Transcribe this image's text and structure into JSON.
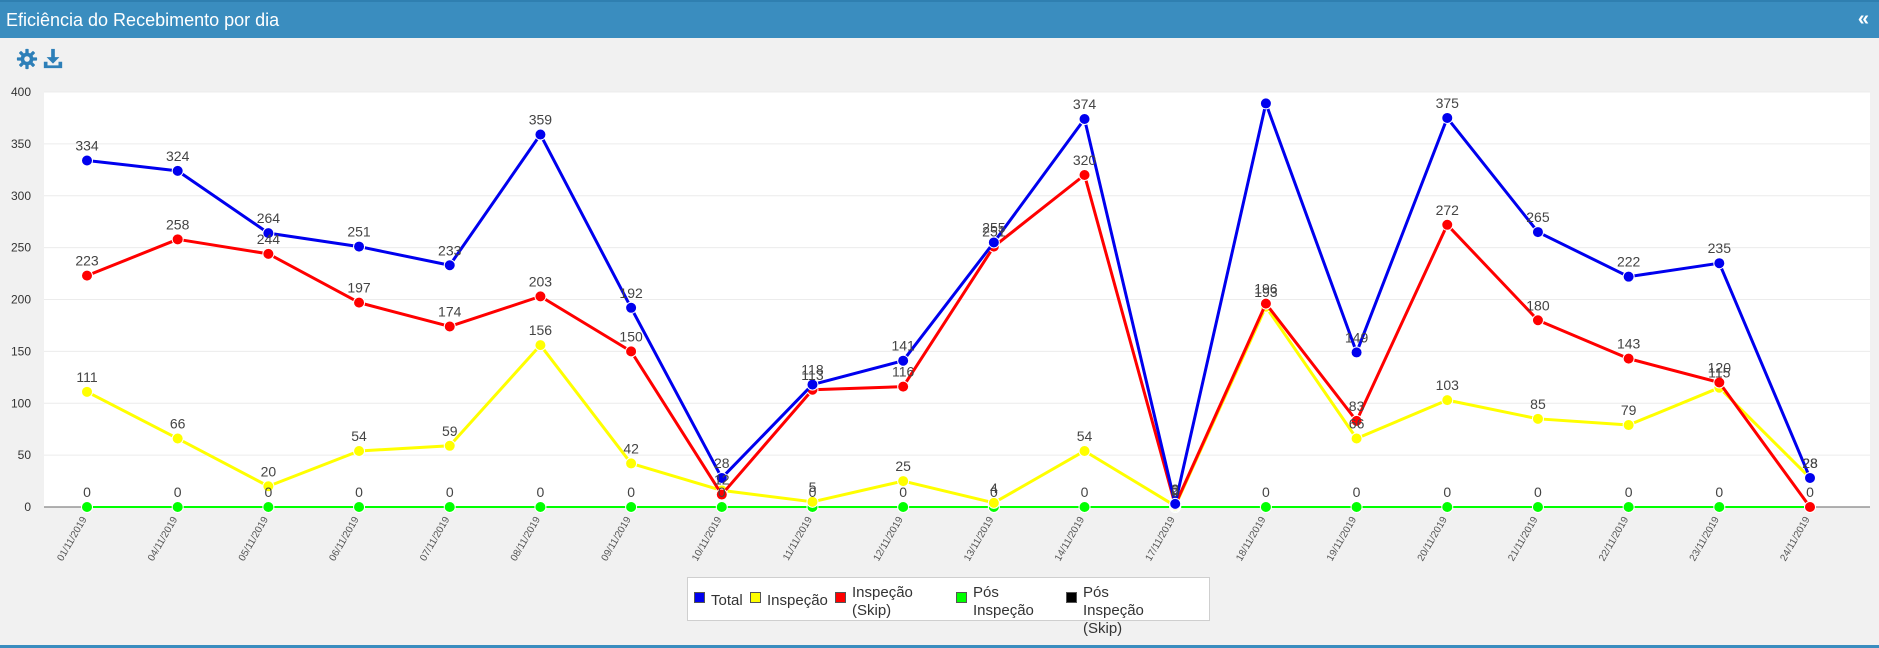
{
  "header": {
    "title": "Eficiência do Recebimento por dia",
    "collapse_label": "«"
  },
  "toolbar": {
    "settings_icon": "gear-icon",
    "download_icon": "download-icon"
  },
  "colors": {
    "total": "#0000ee",
    "inspecao": "#ffff00",
    "skip": "#ff0000",
    "pos": "#00ff00",
    "pos_skip": "#000000"
  },
  "chart_data": {
    "type": "line",
    "title": "",
    "xlabel": "",
    "ylabel": "",
    "ylim": [
      0,
      400
    ],
    "yticks": [
      "0",
      "50",
      "100",
      "150",
      "200",
      "250",
      "300",
      "350",
      "400"
    ],
    "grid": true,
    "legend_position": "bottom",
    "categories": [
      "01/11/2019",
      "04/11/2019",
      "05/11/2019",
      "06/11/2019",
      "07/11/2019",
      "08/11/2019",
      "09/11/2019",
      "10/11/2019",
      "11/11/2019",
      "12/11/2019",
      "13/11/2019",
      "14/11/2019",
      "17/11/2019",
      "18/11/2019",
      "19/11/2019",
      "20/11/2019",
      "21/11/2019",
      "22/11/2019",
      "23/11/2019",
      "24/11/2019"
    ],
    "series": [
      {
        "name": "Total",
        "color": "#0000ee",
        "values": [
          334,
          324,
          264,
          251,
          233,
          359,
          192,
          28,
          118,
          141,
          255,
          374,
          3,
          389,
          149,
          375,
          265,
          222,
          235,
          28
        ],
        "labels": [
          "334",
          "324",
          "264",
          "251",
          "233",
          "359",
          "192",
          "28",
          "118",
          "141",
          "255",
          "374",
          "3",
          "",
          "149",
          "375",
          "265",
          "222",
          "235",
          "28"
        ]
      },
      {
        "name": "Inspeção",
        "color": "#ffff00",
        "values": [
          111,
          66,
          20,
          54,
          59,
          156,
          42,
          16,
          5,
          25,
          4,
          54,
          1,
          193,
          66,
          103,
          85,
          79,
          115,
          28
        ],
        "labels": [
          "111",
          "66",
          "20",
          "54",
          "59",
          "156",
          "42",
          "",
          "5",
          "25",
          "4",
          "54",
          "",
          "193",
          "66",
          "103",
          "85",
          "79",
          "115",
          "28"
        ]
      },
      {
        "name": "Inspeção (Skip)",
        "color": "#ff0000",
        "values": [
          223,
          258,
          244,
          197,
          174,
          203,
          150,
          12,
          113,
          116,
          251,
          320,
          2,
          196,
          83,
          272,
          180,
          143,
          120,
          0
        ],
        "labels": [
          "223",
          "258",
          "244",
          "197",
          "174",
          "203",
          "150",
          "12",
          "113",
          "116",
          "251",
          "320",
          "2",
          "196",
          "83",
          "272",
          "180",
          "143",
          "120",
          ""
        ]
      },
      {
        "name": "Pós Inspeção",
        "color": "#00ff00",
        "values": [
          0,
          0,
          0,
          0,
          0,
          0,
          0,
          0,
          0,
          0,
          0,
          0,
          0,
          0,
          0,
          0,
          0,
          0,
          0,
          0
        ],
        "labels": [
          "",
          "",
          "",
          "",
          "",
          "",
          "",
          "",
          "",
          "",
          "",
          "",
          "",
          "",
          "",
          "",
          "",
          "",
          "",
          ""
        ]
      },
      {
        "name": "Pós Inspeção (Skip)",
        "color": "#000000",
        "values": [
          0,
          0,
          0,
          0,
          0,
          0,
          0,
          0,
          0,
          0,
          0,
          0,
          0,
          0,
          0,
          0,
          0,
          0,
          0,
          0
        ],
        "labels": [
          "0",
          "0",
          "0",
          "0",
          "0",
          "0",
          "0",
          "0",
          "0",
          "0",
          "0",
          "0",
          "0",
          "0",
          "0",
          "0",
          "0",
          "0",
          "0",
          "0"
        ]
      }
    ]
  },
  "legend": {
    "items": [
      {
        "label": "Total"
      },
      {
        "label": "Inspeção"
      },
      {
        "label": "Inspeção\n(Skip)"
      },
      {
        "label": "Pós\nInspeção"
      },
      {
        "label": "Pós Inspeção\n(Skip)"
      }
    ]
  }
}
